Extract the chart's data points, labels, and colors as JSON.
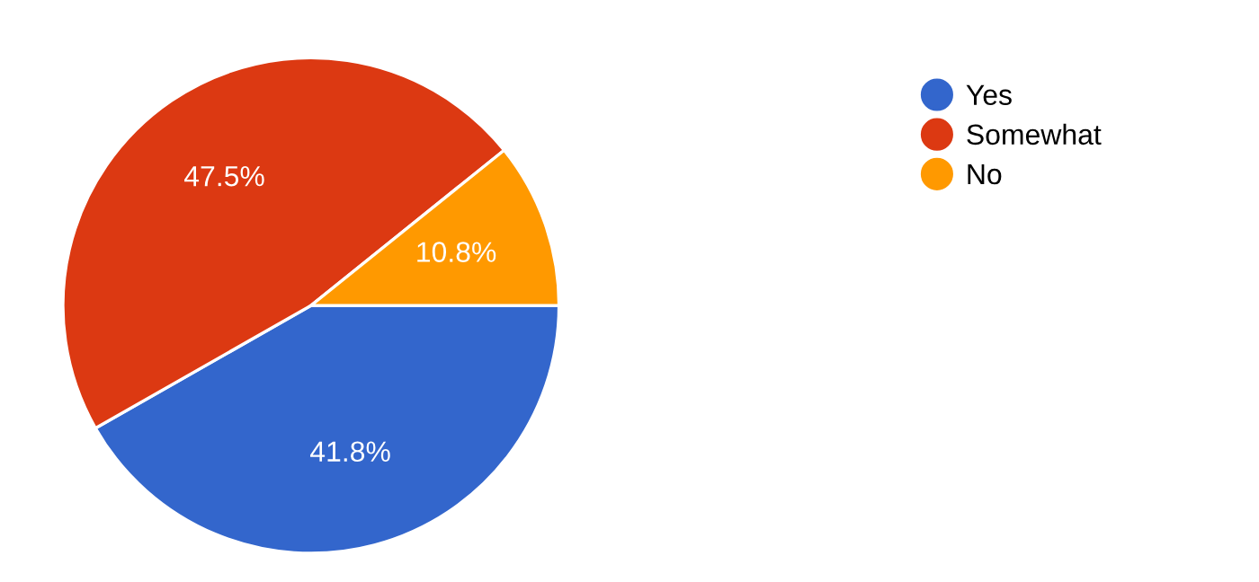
{
  "chart_data": {
    "type": "pie",
    "categories": [
      "Yes",
      "Somewhat",
      "No"
    ],
    "values": [
      41.8,
      47.5,
      10.8
    ],
    "colors": [
      "#3366cc",
      "#dc3912",
      "#ff9900"
    ],
    "value_labels": [
      "41.8%",
      "47.5%",
      "10.8%"
    ],
    "legend": "top right"
  }
}
